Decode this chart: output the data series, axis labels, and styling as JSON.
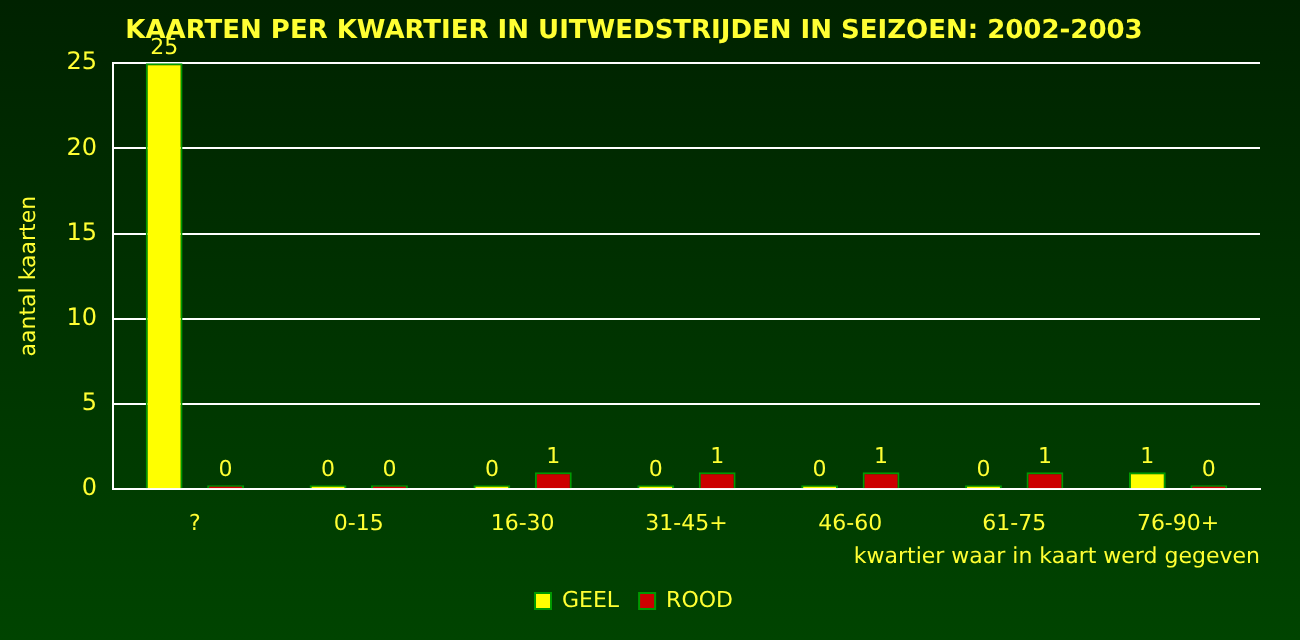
{
  "chart_data": {
    "type": "bar",
    "title": "KAARTEN PER KWARTIER IN UITWEDSTRIJDEN IN SEIZOEN: 2002-2003",
    "xlabel": "kwartier waar in kaart werd gegeven",
    "ylabel": "aantal kaarten",
    "categories": [
      "?",
      "0-15",
      "16-30",
      "31-45+",
      "46-60",
      "61-75",
      "76-90+"
    ],
    "series": [
      {
        "name": "GEEL",
        "color": "#ffff00",
        "values": [
          25,
          0,
          0,
          0,
          0,
          0,
          1
        ]
      },
      {
        "name": "ROOD",
        "color": "#cc0000",
        "values": [
          0,
          0,
          1,
          1,
          1,
          1,
          0
        ]
      }
    ],
    "ylim": [
      0,
      25
    ],
    "yticks": [
      0,
      5,
      10,
      15,
      20,
      25
    ],
    "grid": "y",
    "legend": "bottom",
    "data_labels": true
  }
}
